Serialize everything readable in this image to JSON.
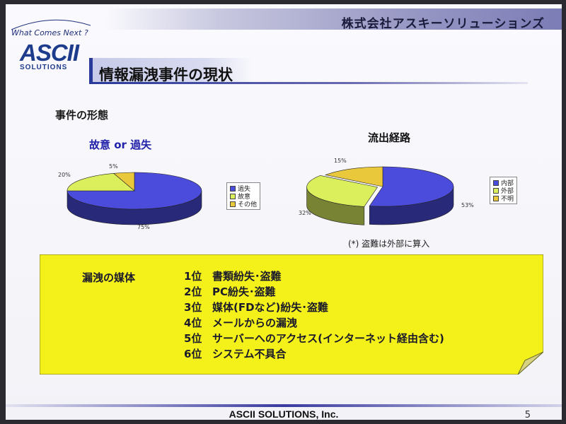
{
  "header": {
    "company": "株式会社アスキーソリューションズ",
    "tagline": "What Comes Next ?",
    "logo_main": "ASCII",
    "logo_sub": "SOLUTIONS"
  },
  "slide": {
    "title": "情報漏洩事件の現状",
    "section": "事件の形態",
    "note": "(*) 盗難は外部に算入"
  },
  "chart_data": [
    {
      "type": "pie",
      "title": "故意 or 過失",
      "categories": [
        "過失",
        "故意",
        "その他"
      ],
      "values": [
        75,
        20,
        5
      ],
      "data_labels": [
        "75%",
        "20%",
        "5%"
      ],
      "colors": [
        "#4b4bdc",
        "#dbee5c",
        "#eac83c"
      ],
      "legend": "right"
    },
    {
      "type": "pie",
      "title": "流出経路",
      "categories": [
        "内部",
        "外部",
        "不明"
      ],
      "values": [
        53,
        32,
        15
      ],
      "data_labels": [
        "53%",
        "32%",
        "15%"
      ],
      "colors": [
        "#4b4bdc",
        "#dbee5c",
        "#eac83c"
      ],
      "legend": "right"
    }
  ],
  "media": {
    "title": "漏洩の媒体",
    "items": [
      {
        "rank": "1位",
        "text": "書類紛失･盗難"
      },
      {
        "rank": "2位",
        "text": "PC紛失･盗難"
      },
      {
        "rank": "3位",
        "text": "媒体(FDなど)紛失･盗難"
      },
      {
        "rank": "4位",
        "text": "メールからの漏洩"
      },
      {
        "rank": "5位",
        "text": "サーバーへのアクセス(インターネット経由含む)"
      },
      {
        "rank": "6位",
        "text": "システム不具合"
      }
    ]
  },
  "footer": {
    "company": "ASCII SOLUTIONS, Inc.",
    "page": "5"
  }
}
